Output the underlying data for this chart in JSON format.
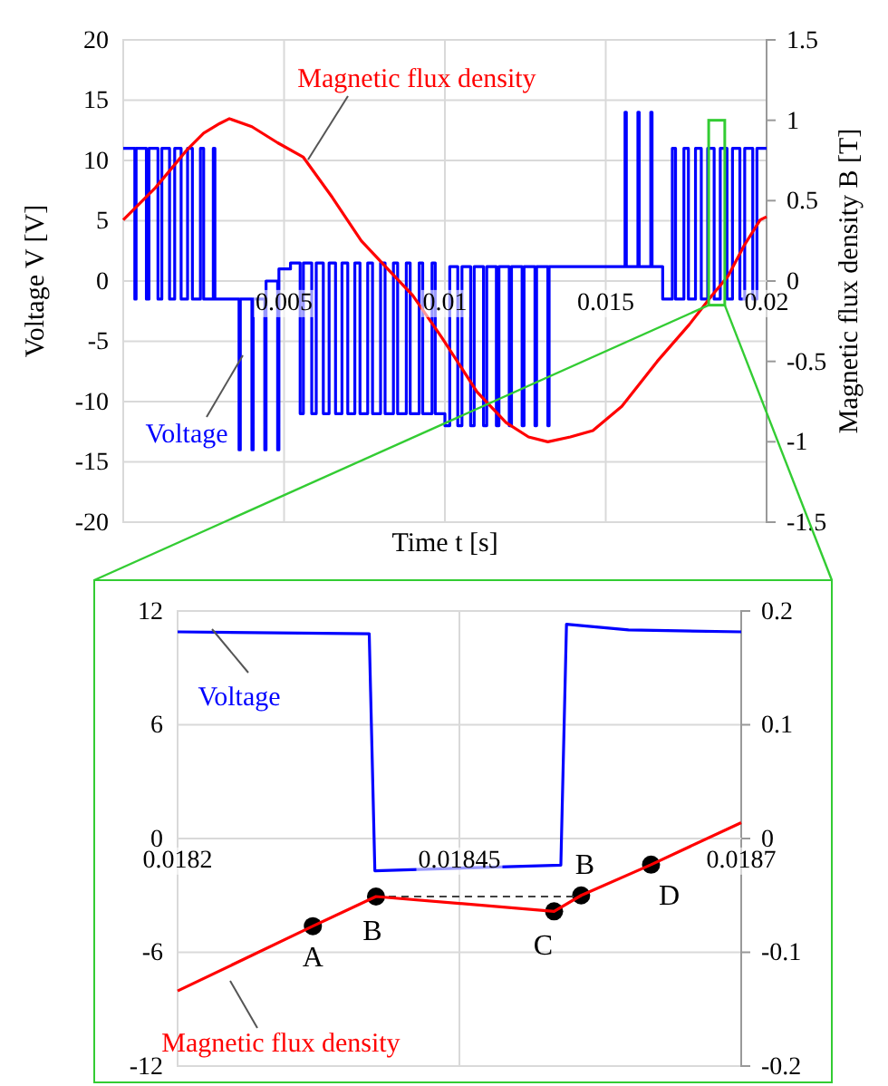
{
  "chart_data": [
    {
      "type": "line",
      "xlabel": "Time t [s]",
      "ylabel": "Voltage V [V]",
      "y2label": "Magnetic flux density B [T]",
      "xlim": [
        0,
        0.02
      ],
      "xticks": [
        0.005,
        0.01,
        0.015,
        0.02
      ],
      "ylim": [
        -20,
        20
      ],
      "yticks": [
        -20,
        -15,
        -10,
        -5,
        0,
        5,
        10,
        15,
        20
      ],
      "y2lim": [
        -1.5,
        1.5
      ],
      "y2ticks": [
        -1.5,
        -1,
        -0.5,
        0,
        0.5,
        1,
        1.5
      ],
      "grid": true,
      "series": [
        {
          "name": "Voltage",
          "color": "#0000ff",
          "x": [
            0,
            0.00036,
            0.00036,
            0.0004,
            0.0004,
            0.00072,
            0.00072,
            0.0008,
            0.0008,
            0.00108,
            0.00108,
            0.0012,
            0.0012,
            0.00144,
            0.00144,
            0.0016,
            0.0016,
            0.0018,
            0.0018,
            0.002,
            0.002,
            0.00215,
            0.00215,
            0.0024,
            0.0024,
            0.0025,
            0.0025,
            0.0028,
            0.0028,
            0.00285,
            0.00285,
            0.0032,
            0.0036,
            0.0036,
            0.00364,
            0.00364,
            0.004,
            0.004,
            0.00404,
            0.00404,
            0.0044,
            0.0044,
            0.00444,
            0.00444,
            0.0048,
            0.0048,
            0.00484,
            0.00484,
            0.0052,
            0.0052,
            0.0055,
            0.0055,
            0.0056,
            0.0056,
            0.00586,
            0.00586,
            0.006,
            0.006,
            0.00622,
            0.00622,
            0.0064,
            0.0064,
            0.0066,
            0.0066,
            0.0068,
            0.0068,
            0.00698,
            0.00698,
            0.0072,
            0.0072,
            0.00736,
            0.00736,
            0.0076,
            0.0076,
            0.00775,
            0.00775,
            0.008,
            0.008,
            0.00814,
            0.00814,
            0.0084,
            0.0084,
            0.00853,
            0.00853,
            0.0088,
            0.0088,
            0.00892,
            0.00892,
            0.0092,
            0.0092,
            0.00931,
            0.00931,
            0.0096,
            0.0096,
            0.0097,
            0.0097,
            0.01,
            0.01,
            0.01015,
            0.01015,
            0.0104,
            0.0104,
            0.01053,
            0.01053,
            0.0108,
            0.0108,
            0.01091,
            0.01091,
            0.0112,
            0.0112,
            0.0113,
            0.0113,
            0.0116,
            0.0116,
            0.01168,
            0.01168,
            0.012,
            0.012,
            0.01207,
            0.01207,
            0.0124,
            0.0124,
            0.01246,
            0.01246,
            0.0128,
            0.0128,
            0.01285,
            0.01285,
            0.0132,
            0.0132,
            0.01324,
            0.01324,
            0.0136,
            0.0156,
            0.0156,
            0.01564,
            0.01564,
            0.016,
            0.016,
            0.01604,
            0.01604,
            0.0164,
            0.0164,
            0.01644,
            0.01644,
            0.01677,
            0.01677,
            0.01707,
            0.01707,
            0.01717,
            0.01717,
            0.01743,
            0.01743,
            0.01757,
            0.01757,
            0.01779,
            0.01779,
            0.01797,
            0.01797,
            0.01817,
            0.01817,
            0.01837,
            0.01837,
            0.01856,
            0.01856,
            0.01877,
            0.01877,
            0.01894,
            0.01894,
            0.01917,
            0.01917,
            0.01932,
            0.01932,
            0.01957,
            0.01957,
            0.0197,
            0.0197,
            0.02
          ],
          "values": [
            11,
            11,
            -1.5,
            -1.5,
            11,
            11,
            -1.5,
            -1.5,
            11,
            11,
            -1.5,
            -1.5,
            11,
            11,
            -1.5,
            -1.5,
            11,
            11,
            -1.5,
            -1.5,
            11,
            11,
            -1.5,
            -1.5,
            11,
            11,
            -1.5,
            -1.5,
            11,
            11,
            -1.5,
            -1.5,
            -1.5,
            -14,
            -14,
            -1.5,
            -1.5,
            -14,
            -14,
            -1.5,
            -1.5,
            -14,
            -14,
            0,
            0,
            -14,
            -14,
            1,
            1,
            1.5,
            1.5,
            -11,
            -11,
            1.5,
            1.5,
            -11,
            -11,
            1.5,
            1.5,
            -11,
            -11,
            1.5,
            1.5,
            -11,
            -11,
            1.5,
            1.5,
            -11,
            -11,
            1.5,
            1.5,
            -11,
            -11,
            1.5,
            1.5,
            -11,
            -11,
            1.5,
            1.5,
            -11,
            -11,
            1.5,
            1.5,
            -11,
            -11,
            1.5,
            1.5,
            -11,
            -11,
            1.5,
            1.5,
            -11,
            -11,
            1.5,
            1.5,
            -11,
            -11,
            -12,
            -12,
            1.2,
            1.2,
            -12,
            -12,
            1.2,
            1.2,
            -12,
            -12,
            1.2,
            1.2,
            -12,
            -12,
            1.2,
            1.2,
            -12,
            -12,
            1.2,
            1.2,
            -12,
            -12,
            1.2,
            1.2,
            -12,
            -12,
            1.2,
            1.2,
            -12,
            -12,
            1.2,
            1.2,
            -12,
            -12,
            1.2,
            1.2,
            1.2,
            14,
            14,
            1.2,
            1.2,
            14,
            14,
            1.2,
            1.2,
            14,
            14,
            1.2,
            1.2,
            -1.5,
            -1.5,
            11,
            11,
            -1.5,
            -1.5,
            11,
            11,
            -1.5,
            -1.5,
            11,
            11,
            -1.5,
            -1.5,
            11,
            11,
            -1.5,
            -1.5,
            11,
            11,
            -1.5,
            -1.5,
            11,
            11,
            -1.5,
            -1.5,
            11,
            11,
            -1.5,
            -1.5,
            11,
            11
          ]
        },
        {
          "name": "Magnetic flux density",
          "color": "#ff0000",
          "axis": "y2",
          "x": [
            0,
            0.0005,
            0.001,
            0.0015,
            0.002,
            0.0025,
            0.003,
            0.0033,
            0.004,
            0.0048,
            0.0056,
            0.0065,
            0.0074,
            0.0082,
            0.009,
            0.0099,
            0.011,
            0.0119,
            0.0126,
            0.0132,
            0.0139,
            0.0146,
            0.0155,
            0.0166,
            0.0176,
            0.0183,
            0.0188,
            0.0193,
            0.0198,
            0.02
          ],
          "values": [
            0.38,
            0.48,
            0.58,
            0.7,
            0.82,
            0.92,
            0.98,
            1.01,
            0.96,
            0.86,
            0.77,
            0.52,
            0.25,
            0.08,
            -0.09,
            -0.35,
            -0.69,
            -0.88,
            -0.97,
            -1,
            -0.97,
            -0.93,
            -0.78,
            -0.5,
            -0.27,
            -0.09,
            0.03,
            0.22,
            0.38,
            0.4
          ]
        }
      ]
    },
    {
      "type": "line",
      "xlim": [
        0.0182,
        0.0187
      ],
      "xticks": [
        0.0182,
        0.01845,
        0.0187
      ],
      "ylim": [
        -12,
        12
      ],
      "yticks": [
        -12,
        -6,
        0,
        6,
        12
      ],
      "y2lim": [
        -0.2,
        0.2
      ],
      "y2ticks": [
        -0.2,
        -0.1,
        0,
        0.1,
        0.2
      ],
      "grid": true,
      "annotations": [
        "A",
        "B",
        "C",
        "B",
        "D"
      ],
      "series": [
        {
          "name": "Voltage",
          "color": "#0000ff",
          "x": [
            0.0182,
            0.01837,
            0.018375,
            0.01854,
            0.018545,
            0.0186,
            0.0187
          ],
          "values": [
            10.9,
            10.8,
            -1.7,
            -1.4,
            11.3,
            11,
            10.9
          ]
        },
        {
          "type": "line",
          "color": "#404040",
          "axis": "y2",
          "line_style": "dashed",
          "x": [
            0.018376,
            0.018558
          ],
          "values": [
            -0.051,
            -0.051
          ]
        },
        {
          "name": "Magnetic flux density",
          "color": "#ff0000",
          "axis": "y2",
          "x": [
            0.0182,
            0.01832,
            0.018376,
            0.018534,
            0.018558,
            0.01862,
            0.0187
          ],
          "values": [
            -0.134,
            -0.077,
            -0.051,
            -0.064,
            -0.05,
            -0.023,
            0.014
          ]
        },
        {
          "type": "scatter",
          "color": "#000000",
          "axis": "y2",
          "marker": "circle",
          "x": [
            0.01832,
            0.018376,
            0.018534,
            0.018558,
            0.01862
          ],
          "values": [
            -0.077,
            -0.051,
            -0.064,
            -0.05,
            -0.023
          ]
        }
      ]
    }
  ]
}
